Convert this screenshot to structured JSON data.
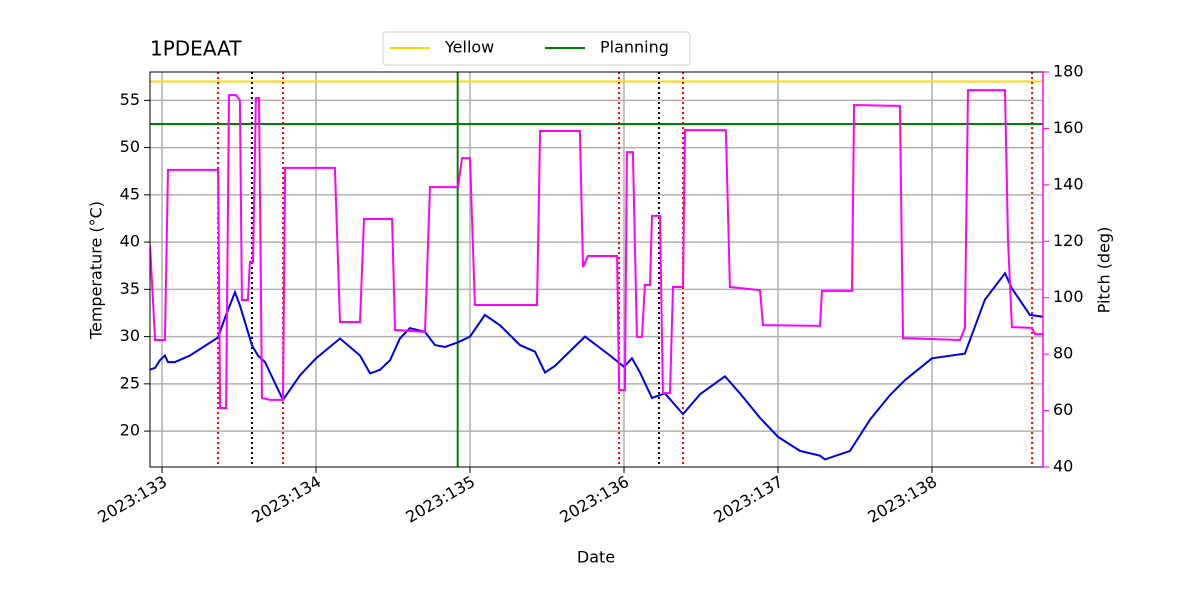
{
  "chart_data": {
    "type": "line",
    "title": "1PDEAAT",
    "xlabel": "Date",
    "ylabel": "Temperature (°C)",
    "y2label": "Pitch (deg)",
    "xlim": [
      132.922,
      138.721
    ],
    "xticks": [
      {
        "value": 133,
        "label": "2023:133"
      },
      {
        "value": 134,
        "label": "2023:134"
      },
      {
        "value": 135,
        "label": "2023:135"
      },
      {
        "value": 136,
        "label": "2023:136"
      },
      {
        "value": 137,
        "label": "2023:137"
      },
      {
        "value": 138,
        "label": "2023:138"
      }
    ],
    "ylim": [
      16.2,
      58
    ],
    "yticks": [
      20,
      25,
      30,
      35,
      40,
      45,
      50,
      55
    ],
    "y2lim": [
      40,
      180
    ],
    "y2ticks": [
      40,
      60,
      80,
      100,
      120,
      140,
      160,
      180
    ],
    "y2color": "#ff00ff",
    "grid": true,
    "legend": "top",
    "series": [
      {
        "color": "#0000ee",
        "x": [
          132.922,
          132.955,
          132.987,
          133.019,
          133.039,
          133.084,
          133.182,
          133.364,
          133.409,
          133.474,
          133.506,
          133.584,
          133.623,
          133.669,
          133.786,
          133.896,
          134.0,
          134.156,
          134.286,
          134.351,
          134.416,
          134.481,
          134.545,
          134.61,
          134.708,
          134.773,
          134.838,
          134.922,
          135.0,
          135.097,
          135.195,
          135.325,
          135.422,
          135.487,
          135.552,
          135.747,
          135.909,
          136.0,
          136.052,
          136.104,
          136.182,
          136.266,
          136.383,
          136.494,
          136.656,
          136.753,
          136.883,
          137.0,
          137.143,
          137.273,
          137.305,
          137.468,
          137.597,
          137.727,
          137.825,
          138.0,
          138.214,
          138.344,
          138.474,
          138.519,
          138.636,
          138.721
        ],
        "values": [
          26.5,
          26.7,
          27.5,
          28.0,
          27.3,
          27.3,
          28.0,
          29.9,
          32.0,
          34.7,
          33.3,
          29.1,
          28.0,
          27.3,
          23.3,
          25.9,
          27.7,
          29.8,
          28.0,
          26.1,
          26.5,
          27.5,
          29.8,
          30.9,
          30.5,
          29.1,
          28.9,
          29.4,
          30.0,
          32.3,
          31.2,
          29.1,
          28.4,
          26.2,
          26.9,
          30.0,
          28.0,
          26.8,
          27.7,
          26.2,
          23.5,
          24.0,
          21.8,
          23.9,
          25.8,
          24.0,
          21.4,
          19.4,
          17.9,
          17.4,
          17.0,
          17.9,
          21.2,
          23.8,
          25.4,
          27.7,
          28.2,
          33.9,
          36.7,
          35.1,
          32.3,
          32.1
        ]
      },
      {
        "color": "#ff00ff",
        "axis": "y2",
        "x": [
          132.922,
          132.955,
          133.019,
          133.039,
          133.364,
          133.377,
          133.416,
          133.435,
          133.481,
          133.506,
          133.519,
          133.558,
          133.571,
          133.591,
          133.61,
          133.63,
          133.649,
          133.701,
          133.786,
          133.799,
          134.123,
          134.156,
          134.286,
          134.312,
          134.494,
          134.513,
          134.708,
          134.74,
          134.922,
          134.948,
          135.0,
          135.032,
          135.435,
          135.455,
          135.714,
          135.734,
          135.766,
          135.955,
          135.968,
          136.006,
          136.019,
          136.058,
          136.084,
          136.117,
          136.136,
          136.169,
          136.182,
          136.234,
          136.253,
          136.299,
          136.318,
          136.383,
          136.396,
          136.662,
          136.688,
          136.883,
          136.903,
          137.273,
          137.286,
          137.481,
          137.494,
          137.792,
          137.812,
          138.182,
          138.214,
          138.234,
          138.474,
          138.494,
          138.519,
          138.649,
          138.669,
          138.721
        ],
        "values": [
          118.7,
          85,
          85,
          145.3,
          145.3,
          60.9,
          60.9,
          171.8,
          171.8,
          170,
          99.2,
          99.2,
          112.7,
          112.7,
          170.8,
          170.8,
          64.5,
          63.8,
          63.8,
          146,
          146,
          91.4,
          91.4,
          127.9,
          127.9,
          88.6,
          87.9,
          139.2,
          139.2,
          149.5,
          149.5,
          97.4,
          97.4,
          159.1,
          159.1,
          110.9,
          114.8,
          114.8,
          67.3,
          67.3,
          151.6,
          151.6,
          86.1,
          86.1,
          104.5,
          104.5,
          129,
          129,
          66.2,
          66.2,
          103.8,
          103.8,
          159.4,
          159.4,
          103.8,
          102.7,
          90.3,
          90,
          102.4,
          102.4,
          168.3,
          168,
          85.7,
          85,
          89.3,
          173.6,
          173.6,
          120.5,
          89.6,
          89.3,
          87.1,
          87.1
        ]
      }
    ],
    "hlines": [
      {
        "name": "Yellow",
        "value": 57,
        "color": "#ffd700"
      },
      {
        "name": "Planning",
        "value": 52.5,
        "color": "#008000"
      }
    ],
    "vlines": [
      {
        "x": 134.92,
        "color": "#008000",
        "style": "solid"
      },
      {
        "x": 133.364,
        "color": "#ff0000",
        "style": "dotted"
      },
      {
        "x": 133.786,
        "color": "#ff0000",
        "style": "dotted"
      },
      {
        "x": 135.968,
        "color": "#ff0000",
        "style": "dotted"
      },
      {
        "x": 136.383,
        "color": "#ff0000",
        "style": "dotted"
      },
      {
        "x": 138.65,
        "color": "#ff0000",
        "style": "dotted"
      },
      {
        "x": 133.584,
        "color": "#000000",
        "style": "dotted"
      },
      {
        "x": 136.227,
        "color": "#000000",
        "style": "dotted"
      }
    ]
  }
}
